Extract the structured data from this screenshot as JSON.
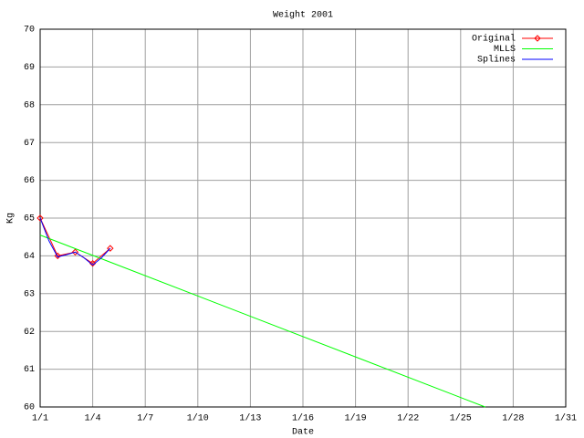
{
  "chart_data": {
    "type": "line",
    "title": "Weight 2001",
    "x_label": "Date",
    "y_label": "Kg",
    "xlim": [
      1,
      31
    ],
    "ylim": [
      60,
      70
    ],
    "xticks": [
      {
        "value": 1,
        "label": "1/1"
      },
      {
        "value": 4,
        "label": "1/4"
      },
      {
        "value": 7,
        "label": "1/7"
      },
      {
        "value": 10,
        "label": "1/10"
      },
      {
        "value": 13,
        "label": "1/13"
      },
      {
        "value": 16,
        "label": "1/16"
      },
      {
        "value": 19,
        "label": "1/19"
      },
      {
        "value": 22,
        "label": "1/22"
      },
      {
        "value": 25,
        "label": "1/25"
      },
      {
        "value": 28,
        "label": "1/28"
      },
      {
        "value": 31,
        "label": "1/31"
      }
    ],
    "yticks": [
      60,
      61,
      62,
      63,
      64,
      65,
      66,
      67,
      68,
      69,
      70
    ],
    "grid": true,
    "legend": "top-right",
    "series": [
      {
        "name": "Original",
        "color": "#ff0000",
        "markers": true,
        "x": [
          1,
          2,
          3,
          4,
          5
        ],
        "values": [
          65.0,
          64.0,
          64.1,
          63.8,
          64.2
        ]
      },
      {
        "name": "MLLS",
        "color": "#00ff00",
        "markers": false,
        "x": [
          1,
          26.4
        ],
        "values": [
          64.55,
          60.0
        ]
      },
      {
        "name": "Splines",
        "color": "#0000ff",
        "markers": false,
        "x": [
          1,
          1.5,
          2,
          2.5,
          3,
          3.5,
          4,
          4.5,
          5
        ],
        "values": [
          65.0,
          64.4,
          63.97,
          64.03,
          64.1,
          63.95,
          63.76,
          63.95,
          64.2
        ]
      }
    ]
  }
}
